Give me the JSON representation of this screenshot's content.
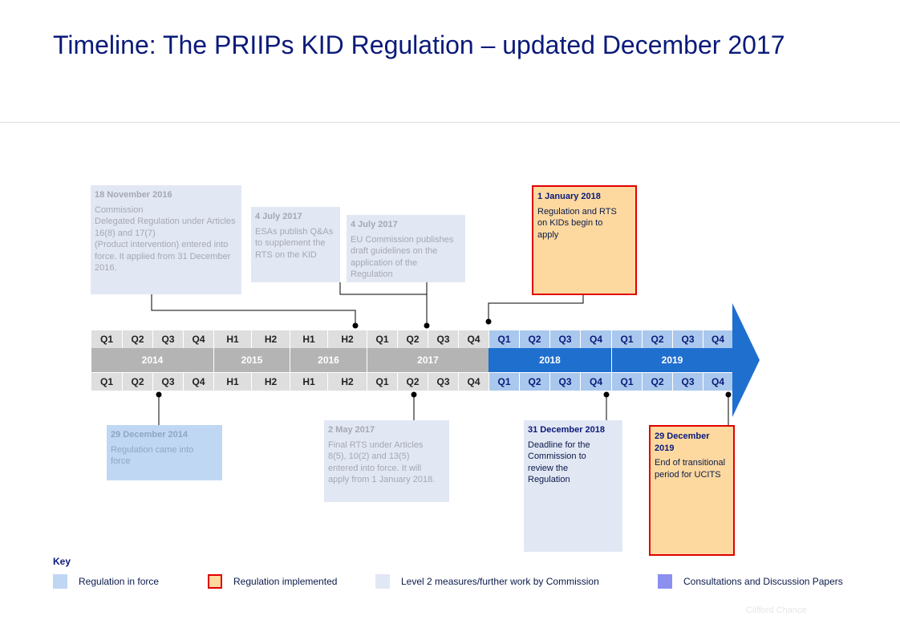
{
  "title": "Timeline: The PRIIPs KID Regulation – updated December 2017",
  "timeline": {
    "top_periods": [
      "Q1",
      "Q2",
      "Q3",
      "Q4",
      "H1",
      "H2",
      "H1",
      "H2",
      "Q1",
      "Q2",
      "Q3",
      "Q4",
      "Q1",
      "Q2",
      "Q3",
      "Q4",
      "Q1",
      "Q2",
      "Q3",
      "Q4"
    ],
    "bottom_periods": [
      "Q1",
      "Q2",
      "Q3",
      "Q4",
      "H1",
      "H2",
      "H1",
      "H2",
      "Q1",
      "Q2",
      "Q3",
      "Q4",
      "Q1",
      "Q2",
      "Q3",
      "Q4",
      "Q1",
      "Q2",
      "Q3",
      "Q4"
    ],
    "years": [
      "2014",
      "2015",
      "2016",
      "2017",
      "2018",
      "2019"
    ]
  },
  "events": {
    "nov2016": {
      "date": "18 November 2016",
      "text": "Commission\nDelegated  Regulation under Articles 16(8) and 17(7)\n (Product intervention) entered into force. It applied from 31 December 2016."
    },
    "jul2017_esas": {
      "date": "4 July 2017",
      "text": "ESAs publish Q&As to supplement the RTS on the KID"
    },
    "jul2017_ec": {
      "date": "4 July 2017",
      "text": "EU Commission publishes draft guidelines on the application of the Regulation"
    },
    "jan2018": {
      "date": "1 January 2018",
      "text": "Regulation  and RTS on KIDs begin to apply"
    },
    "dec2014": {
      "date": "29 December 2014",
      "text": "Regulation came into force"
    },
    "may2017": {
      "date": "2 May 2017",
      "text": "Final RTS  under Articles 8(5), 10(2) and 13(5) entered into force. It will apply from 1 January 2018."
    },
    "dec2018": {
      "date": "31 December 2018",
      "text": "Deadline for the Commission to review the Regulation"
    },
    "dec2019": {
      "date": "29 December 2019",
      "text": "End of transitional period for UCITS"
    }
  },
  "key": {
    "title": "Key",
    "items": [
      {
        "label": "Regulation in force",
        "color": "#bfd7f3"
      },
      {
        "label": "Regulation implemented",
        "color": "#fdd9a0",
        "border": "#e00000"
      },
      {
        "label": "Level 2 measures/further work by Commission",
        "color": "#e2e7f4"
      },
      {
        "label": "Consultations and Discussion Papers",
        "color": "#8a8ff0"
      }
    ]
  },
  "footer": "Clifford Chance",
  "colors": {
    "title": "#0a1a7a",
    "arrow": "#1f6fcf",
    "grey_band": "#b4b4b4"
  }
}
